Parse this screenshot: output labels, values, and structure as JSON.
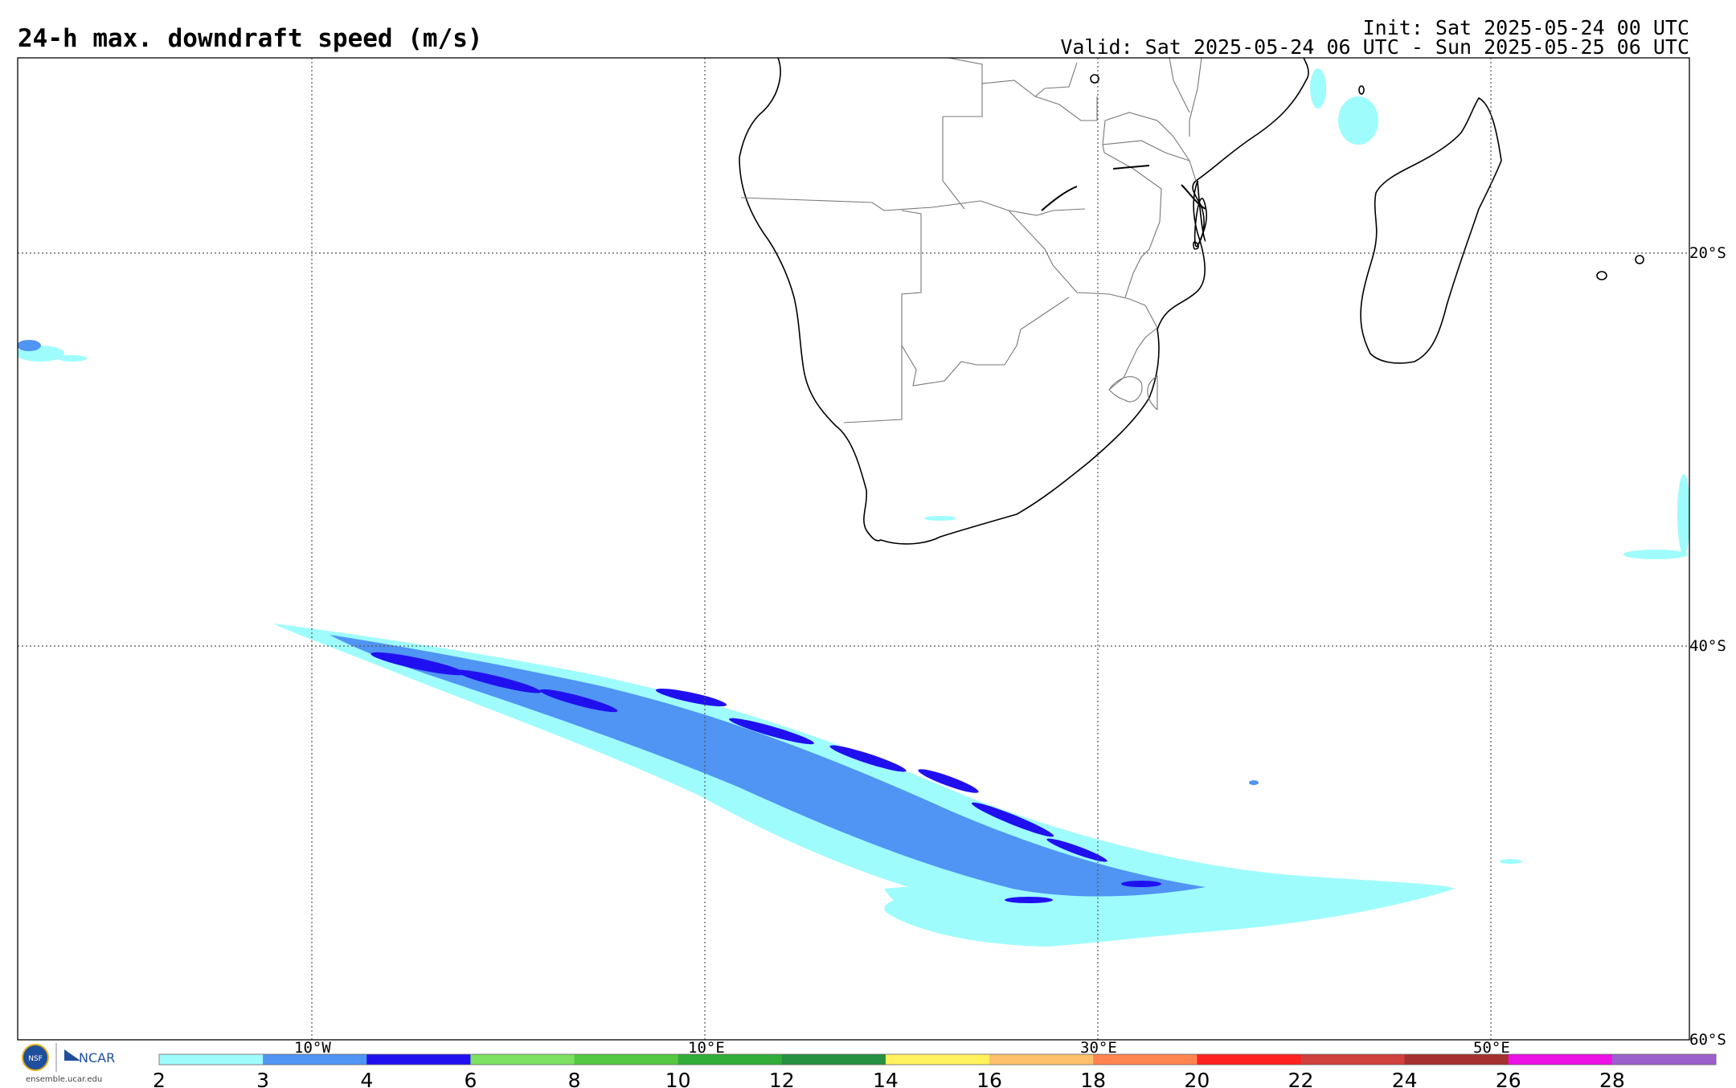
{
  "header": {
    "title": "24-h max. downdraft speed (m/s)",
    "init": "Init: Sat 2025-05-24 00 UTC",
    "valid": "Valid: Sat 2025-05-24 06 UTC - Sun 2025-05-25 06 UTC"
  },
  "map": {
    "lon_labels": [
      "10°W",
      "10°E",
      "30°E",
      "50°E"
    ],
    "lat_labels": [
      "20°S",
      "40°S",
      "60°S"
    ]
  },
  "colorbar": {
    "ticks": [
      "2",
      "3",
      "4",
      "6",
      "8",
      "10",
      "12",
      "14",
      "16",
      "18",
      "20",
      "22",
      "24",
      "26",
      "28"
    ],
    "colors": [
      "#9ffcfc",
      "#5094f4",
      "#2010f0",
      "#7ce060",
      "#54c840",
      "#30ac38",
      "#249040",
      "#fff25c",
      "#ffc06c",
      "#ff8450",
      "#ff2020",
      "#d0403c",
      "#a43030",
      "#ec10e4",
      "#9c60cc"
    ]
  },
  "logos": {
    "nsf": "NSF",
    "ncar": "NCAR",
    "site": "ensemble.ucar.edu"
  }
}
